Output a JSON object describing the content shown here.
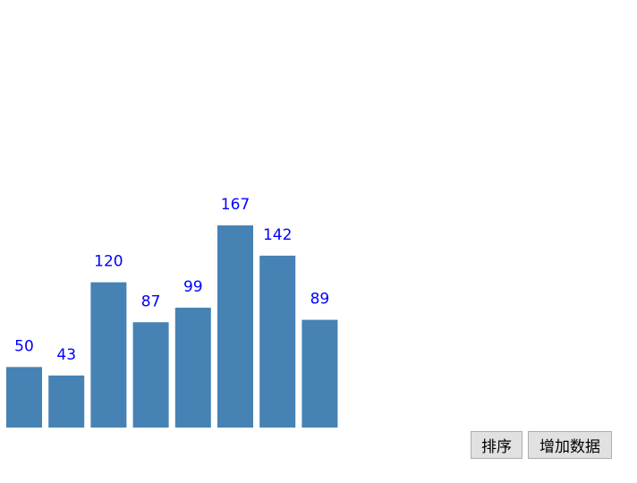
{
  "chart_data": {
    "type": "bar",
    "values": [
      50,
      43,
      120,
      87,
      99,
      167,
      142,
      89
    ],
    "color": "#4682b4",
    "label_color": "#0000ff"
  },
  "buttons": [
    "排序",
    "增加数据"
  ]
}
